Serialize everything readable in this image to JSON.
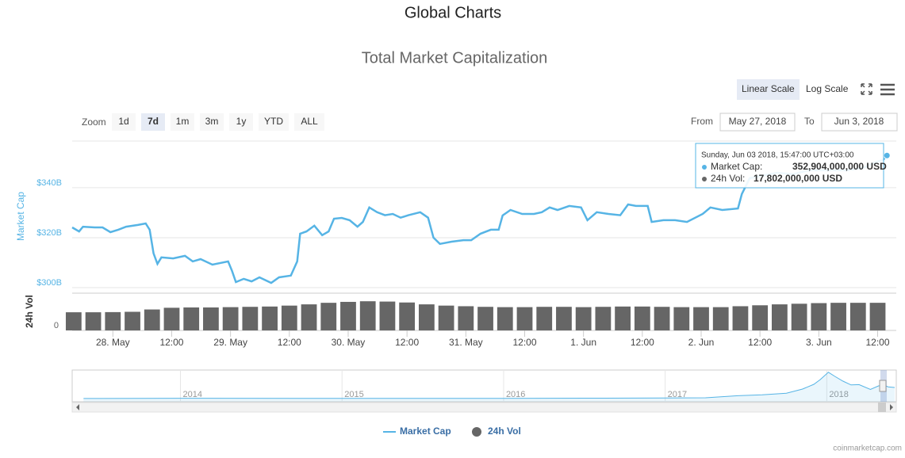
{
  "page_title": "Global Charts",
  "controls": {
    "scale_buttons": [
      "Linear Scale",
      "Log Scale"
    ],
    "scale_selected": 0,
    "zoom_label": "Zoom",
    "zoom_buttons": [
      "1d",
      "7d",
      "1m",
      "3m",
      "1y",
      "YTD",
      "ALL"
    ],
    "zoom_selected": 1,
    "from_label": "From",
    "from": "May 27, 2018",
    "to_label": "To",
    "to": "Jun 3, 2018"
  },
  "chart_data": {
    "type": "line",
    "title": "Total Market Capitalization",
    "ylabel": "Market Cap",
    "y2label": "24h Vol",
    "xlim": [
      -8.3,
      159.8
    ],
    "xticks": [
      {
        "value": 0,
        "label": "28. May"
      },
      {
        "value": 12,
        "label": "12:00"
      },
      {
        "value": 24,
        "label": "29. May"
      },
      {
        "value": 36,
        "label": "12:00"
      },
      {
        "value": 48,
        "label": "30. May"
      },
      {
        "value": 60,
        "label": "12:00"
      },
      {
        "value": 72,
        "label": "31. May"
      },
      {
        "value": 84,
        "label": "12:00"
      },
      {
        "value": 96,
        "label": "1. Jun"
      },
      {
        "value": 108,
        "label": "12:00"
      },
      {
        "value": 120,
        "label": "2. Jun"
      },
      {
        "value": 132,
        "label": "12:00"
      },
      {
        "value": 144,
        "label": "3. Jun"
      },
      {
        "value": 156,
        "label": "12:00"
      }
    ],
    "ylim": [
      298.4,
      358.7
    ],
    "yticks": [
      {
        "value": 300,
        "label": "$300B"
      },
      {
        "value": 320,
        "label": "$320B"
      },
      {
        "value": 340,
        "label": "$340B"
      }
    ],
    "y2lim": [
      0,
      24
    ],
    "y2ticks": [
      0
    ],
    "grid": true,
    "series": [
      {
        "name": "Market Cap",
        "color": "#56b4e5",
        "x": [
          -8.3,
          -6.9,
          -6.1,
          -3.7,
          -2.1,
          -0.5,
          1.1,
          2.7,
          5.1,
          6.7,
          7.5,
          8.3,
          9.1,
          9.9,
          12.3,
          14.7,
          16.3,
          17.9,
          20.3,
          23.5,
          24.3,
          25.1,
          26.7,
          28.3,
          29.9,
          32.3,
          33.9,
          36.3,
          37.6,
          38.2,
          39.5,
          41.1,
          42.7,
          44.0,
          45.1,
          46.7,
          48.3,
          49.9,
          51.0,
          52.3,
          53.9,
          55.5,
          57.1,
          58.7,
          60.3,
          62.7,
          64.3,
          65.4,
          66.7,
          69.1,
          71.5,
          73.1,
          75.0,
          77.1,
          78.7,
          79.5,
          81.1,
          83.5,
          85.9,
          87.5,
          89.1,
          90.7,
          93.1,
          95.5,
          96.8,
          98.7,
          101.1,
          103.5,
          105.1,
          106.7,
          109.1,
          109.9,
          112.3,
          114.7,
          117.1,
          120.3,
          121.9,
          124.3,
          127.5,
          128.3,
          129.9,
          132.3,
          135.5,
          138.7,
          141.9,
          146.7,
          149.9,
          153.1,
          155.5,
          157.1,
          157.9
        ],
        "values": [
          324.1,
          322.5,
          324.4,
          324.1,
          324.1,
          322.2,
          323.2,
          324.4,
          325.1,
          325.7,
          323.2,
          313.7,
          309.5,
          312.1,
          311.7,
          312.7,
          310.5,
          311.4,
          309.2,
          310.5,
          306.7,
          302.2,
          303.5,
          302.5,
          304.1,
          301.9,
          304.1,
          304.8,
          310.5,
          321.6,
          322.5,
          324.8,
          321.0,
          322.5,
          327.6,
          327.9,
          327.0,
          324.4,
          326.3,
          332.1,
          330.2,
          329.0,
          329.5,
          328.0,
          329.0,
          330.2,
          328.0,
          320.0,
          317.5,
          318.4,
          319.0,
          319.0,
          321.6,
          323.2,
          323.2,
          328.9,
          331.1,
          329.5,
          329.5,
          330.2,
          332.1,
          331.1,
          332.7,
          332.1,
          327.0,
          330.2,
          329.5,
          329.0,
          333.3,
          332.7,
          332.7,
          326.3,
          327.0,
          327.0,
          326.3,
          329.5,
          332.1,
          331.1,
          331.7,
          337.5,
          343.8,
          344.8,
          346.0,
          345.4,
          347.0,
          347.0,
          347.0,
          348.0,
          350.2,
          351.1,
          352.904
        ]
      },
      {
        "name": "24h Vol",
        "color": "#666666",
        "axis": "y2",
        "x": [
          -8,
          -4,
          0,
          4,
          8,
          12,
          16,
          20,
          24,
          28,
          32,
          36,
          40,
          44,
          48,
          52,
          56,
          60,
          64,
          68,
          72,
          76,
          80,
          84,
          88,
          92,
          96,
          100,
          104,
          108,
          112,
          116,
          120,
          124,
          128,
          132,
          136,
          140,
          144,
          148,
          152,
          156
        ],
        "values": [
          11.7,
          11.7,
          11.8,
          12.0,
          13.5,
          14.6,
          14.8,
          14.8,
          15.0,
          15.2,
          15.4,
          16.0,
          16.8,
          17.8,
          18.4,
          18.8,
          18.6,
          18.0,
          16.8,
          16.0,
          15.6,
          15.2,
          15.0,
          15.0,
          15.2,
          15.2,
          15.0,
          15.2,
          15.4,
          15.4,
          15.2,
          15.0,
          15.0,
          15.0,
          15.6,
          16.2,
          16.8,
          17.2,
          17.6,
          17.8,
          17.8,
          17.802
        ]
      }
    ],
    "tooltip": {
      "date": "Sunday, Jun 03 2018, 15:47:00 UTC+03:00",
      "market_cap_label": "Market Cap:",
      "market_cap": "352,904,000,000 USD",
      "vol_label": "24h Vol:",
      "vol": "17,802,000,000 USD"
    },
    "navigator": {
      "xlim": [
        2013.33,
        2018.43
      ],
      "ylim": [
        0,
        850
      ],
      "xticks": [
        2014,
        2015,
        2016,
        2017,
        2018
      ],
      "x": [
        2013.4,
        2014,
        2015,
        2016,
        2016.5,
        2017,
        2017.25,
        2017.45,
        2017.6,
        2017.75,
        2017.85,
        2017.92,
        2017.96,
        2018.01,
        2018.05,
        2018.1,
        2018.15,
        2018.2,
        2018.27,
        2018.32,
        2018.35,
        2018.38,
        2018.42
      ],
      "values": [
        1.5,
        10,
        5,
        7,
        12,
        18,
        25,
        90,
        120,
        170,
        300,
        450,
        600,
        830,
        700,
        550,
        430,
        440,
        290,
        400,
        430,
        370,
        350
      ]
    },
    "credit": "coinmarketcap.com"
  }
}
